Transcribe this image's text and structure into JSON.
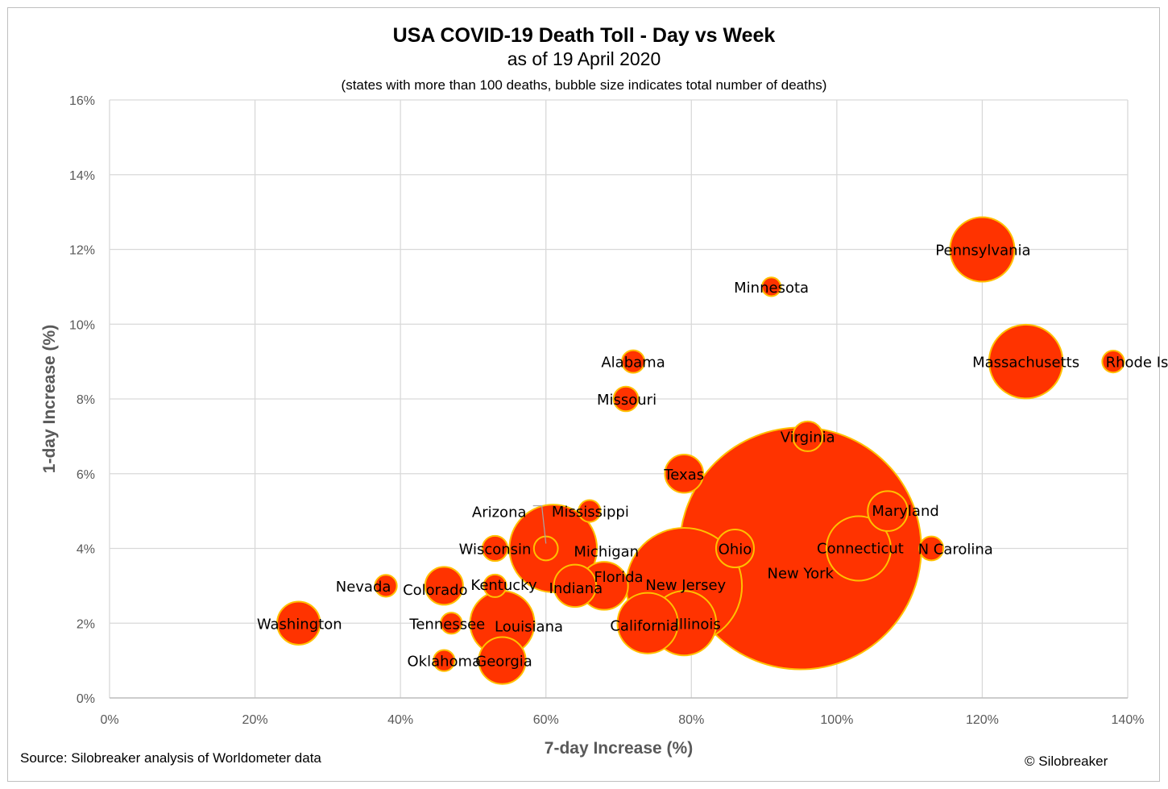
{
  "header": {
    "title": "USA COVID-19 Death Toll - Day vs Week",
    "subtitle": "as of 19 April 2020",
    "note": "(states with more than 100 deaths, bubble size indicates total number of deaths)"
  },
  "footer": {
    "source": "Source: Silobreaker analysis of Worldometer data",
    "copyright": "© Silobreaker"
  },
  "chart_data": {
    "type": "scatter",
    "title": "USA COVID-19 Death Toll - Day vs Week",
    "xlabel": "7-day Increase (%)",
    "ylabel": "1-day Increase (%)",
    "xlim": [
      0,
      140
    ],
    "ylim": [
      0,
      16
    ],
    "x_ticks": [
      0,
      20,
      40,
      60,
      80,
      100,
      120,
      140
    ],
    "y_ticks": [
      0,
      2,
      4,
      6,
      8,
      10,
      12,
      14,
      16
    ],
    "x_tick_labels": [
      "0%",
      "20%",
      "40%",
      "60%",
      "80%",
      "100%",
      "120%",
      "140%"
    ],
    "y_tick_labels": [
      "0%",
      "2%",
      "4%",
      "6%",
      "8%",
      "10%",
      "12%",
      "14%",
      "16%"
    ],
    "grid": true,
    "bubble_fill": "#ff3300",
    "bubble_stroke": "#ffc000",
    "points": [
      {
        "label": "New York",
        "x": 95,
        "y": 4,
        "deaths": 18300
      },
      {
        "label": "New Jersey",
        "x": 79,
        "y": 3,
        "deaths": 4200
      },
      {
        "label": "Michigan",
        "x": 61,
        "y": 4,
        "deaths": 2400
      },
      {
        "label": "Massachusetts",
        "x": 126,
        "y": 9,
        "deaths": 1700
      },
      {
        "label": "Pennsylvania",
        "x": 120,
        "y": 12,
        "deaths": 1300
      },
      {
        "label": "Connecticut",
        "x": 103,
        "y": 4,
        "deaths": 1300
      },
      {
        "label": "Louisiana",
        "x": 54,
        "y": 2,
        "deaths": 1300
      },
      {
        "label": "Illinois",
        "x": 79,
        "y": 2,
        "deaths": 1300
      },
      {
        "label": "California",
        "x": 74,
        "y": 2,
        "deaths": 1150
      },
      {
        "label": "Georgia",
        "x": 54,
        "y": 1,
        "deaths": 690
      },
      {
        "label": "Florida",
        "x": 68,
        "y": 3,
        "deaths": 720
      },
      {
        "label": "Washington",
        "x": 26,
        "y": 2,
        "deaths": 580
      },
      {
        "label": "Indiana",
        "x": 64,
        "y": 3,
        "deaths": 560
      },
      {
        "label": "Maryland",
        "x": 107,
        "y": 5,
        "deaths": 500
      },
      {
        "label": "Ohio",
        "x": 86,
        "y": 4,
        "deaths": 450
      },
      {
        "label": "Colorado",
        "x": 46,
        "y": 3,
        "deaths": 450
      },
      {
        "label": "Texas",
        "x": 79,
        "y": 6,
        "deaths": 460
      },
      {
        "label": "Virginia",
        "x": 96,
        "y": 7,
        "deaths": 280
      },
      {
        "label": "Wisconsin",
        "x": 53,
        "y": 4,
        "deaths": 200
      },
      {
        "label": "Minnesota",
        "x": 91,
        "y": 11,
        "deaths": 110
      },
      {
        "label": "Alabama",
        "x": 72,
        "y": 9,
        "deaths": 160
      },
      {
        "label": "Missouri",
        "x": 71,
        "y": 8,
        "deaths": 190
      },
      {
        "label": "Mississippi",
        "x": 66,
        "y": 5,
        "deaths": 150
      },
      {
        "label": "Arizona",
        "x": 60,
        "y": 4,
        "deaths": 180
      },
      {
        "label": "Rhode Island",
        "x": 138,
        "y": 9,
        "deaths": 150
      },
      {
        "label": "N Carolina",
        "x": 113,
        "y": 4,
        "deaths": 180
      },
      {
        "label": "Nevada",
        "x": 38,
        "y": 3,
        "deaths": 150
      },
      {
        "label": "Kentucky",
        "x": 53,
        "y": 3,
        "deaths": 160
      },
      {
        "label": "Tennessee",
        "x": 47,
        "y": 2,
        "deaths": 140
      },
      {
        "label": "Oklahoma",
        "x": 46,
        "y": 1,
        "deaths": 140
      }
    ]
  }
}
